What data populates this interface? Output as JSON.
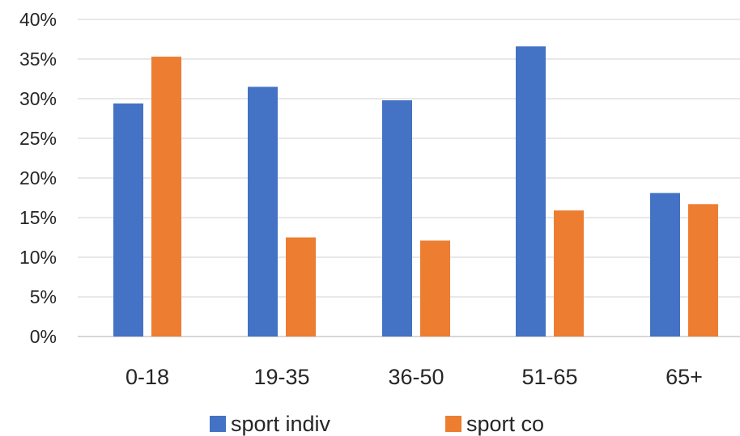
{
  "chart_data": {
    "type": "bar",
    "title": "",
    "xlabel": "",
    "ylabel": "",
    "categories": [
      "0-18",
      "19-35",
      "36-50",
      "51-65",
      "65+"
    ],
    "series": [
      {
        "name": "sport indiv",
        "color": "#4472C4",
        "values": [
          29.4,
          31.5,
          29.8,
          36.6,
          18.1
        ]
      },
      {
        "name": "sport co",
        "color": "#ED7D31",
        "values": [
          35.3,
          12.5,
          12.1,
          15.9,
          16.7
        ]
      }
    ],
    "ylim": [
      0,
      40
    ],
    "yticks": [
      "0%",
      "5%",
      "10%",
      "15%",
      "20%",
      "25%",
      "30%",
      "35%",
      "40%"
    ],
    "grid": true,
    "legend_position": "bottom"
  }
}
